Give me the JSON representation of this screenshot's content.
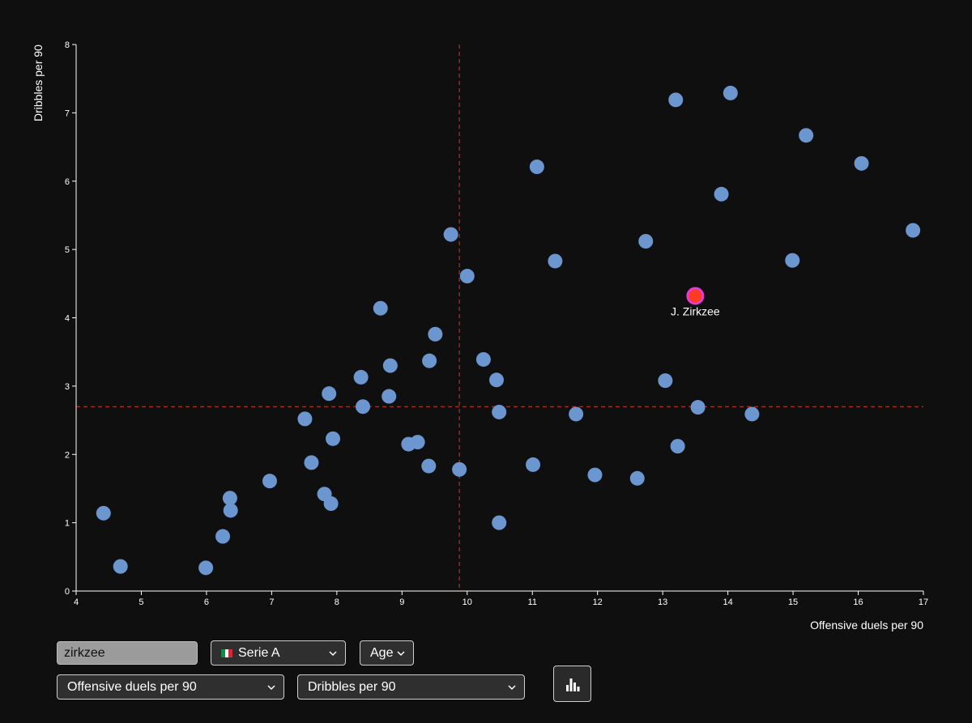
{
  "chart_data": {
    "type": "scatter",
    "xlabel": "Offensive duels per 90",
    "ylabel": "Dribbles per 90",
    "xlim": [
      4,
      17
    ],
    "ylim": [
      0,
      8
    ],
    "xticks": [
      "4",
      "5",
      "6",
      "7",
      "8",
      "9",
      "10",
      "11",
      "12",
      "13",
      "14",
      "15",
      "16",
      "17"
    ],
    "yticks": [
      "0",
      "1",
      "2",
      "3",
      "4",
      "5",
      "6",
      "7",
      "8"
    ],
    "reference_lines": {
      "x": 9.88,
      "y": 2.7,
      "color": "#d9342b",
      "style": "dashed"
    },
    "point_color": "#6b96cf",
    "points": [
      [
        4.42,
        1.14
      ],
      [
        4.68,
        0.36
      ],
      [
        5.99,
        0.34
      ],
      [
        6.25,
        0.8
      ],
      [
        6.36,
        1.36
      ],
      [
        6.37,
        1.18
      ],
      [
        6.97,
        1.61
      ],
      [
        7.51,
        2.52
      ],
      [
        7.61,
        1.88
      ],
      [
        7.81,
        1.42
      ],
      [
        7.88,
        2.89
      ],
      [
        7.91,
        1.28
      ],
      [
        7.94,
        2.23
      ],
      [
        8.37,
        3.13
      ],
      [
        8.4,
        2.7
      ],
      [
        8.67,
        4.14
      ],
      [
        8.8,
        2.85
      ],
      [
        8.82,
        3.3
      ],
      [
        9.1,
        2.15
      ],
      [
        9.24,
        2.18
      ],
      [
        9.41,
        1.83
      ],
      [
        9.42,
        3.37
      ],
      [
        9.51,
        3.76
      ],
      [
        9.75,
        5.22
      ],
      [
        9.88,
        1.78
      ],
      [
        10.0,
        4.61
      ],
      [
        10.25,
        3.39
      ],
      [
        10.45,
        3.09
      ],
      [
        10.49,
        2.62
      ],
      [
        10.49,
        1.0
      ],
      [
        11.01,
        1.85
      ],
      [
        11.07,
        6.21
      ],
      [
        11.35,
        4.83
      ],
      [
        11.67,
        2.59
      ],
      [
        11.96,
        1.7
      ],
      [
        12.61,
        1.65
      ],
      [
        12.74,
        5.12
      ],
      [
        13.04,
        3.08
      ],
      [
        13.2,
        7.19
      ],
      [
        13.23,
        2.12
      ],
      [
        13.54,
        2.69
      ],
      [
        13.9,
        5.81
      ],
      [
        14.04,
        7.29
      ],
      [
        14.37,
        2.59
      ],
      [
        14.99,
        4.84
      ],
      [
        15.2,
        6.67
      ],
      [
        16.05,
        6.26
      ],
      [
        16.84,
        5.28
      ]
    ],
    "highlight": {
      "label": "J. Zirkzee",
      "x": 13.5,
      "y": 4.32,
      "fill": "#ff3b1f",
      "stroke": "#e43ad6"
    }
  },
  "controls": {
    "search_value": "zirkzee",
    "league_select": "Serie A",
    "league_flag_colors": [
      "#009246",
      "#ffffff",
      "#ce2b37"
    ],
    "age_select": "Age",
    "x_metric_select": "Offensive duels per 90",
    "y_metric_select": "Dribbles per 90",
    "chart_button_icon": "bar-chart-icon"
  }
}
